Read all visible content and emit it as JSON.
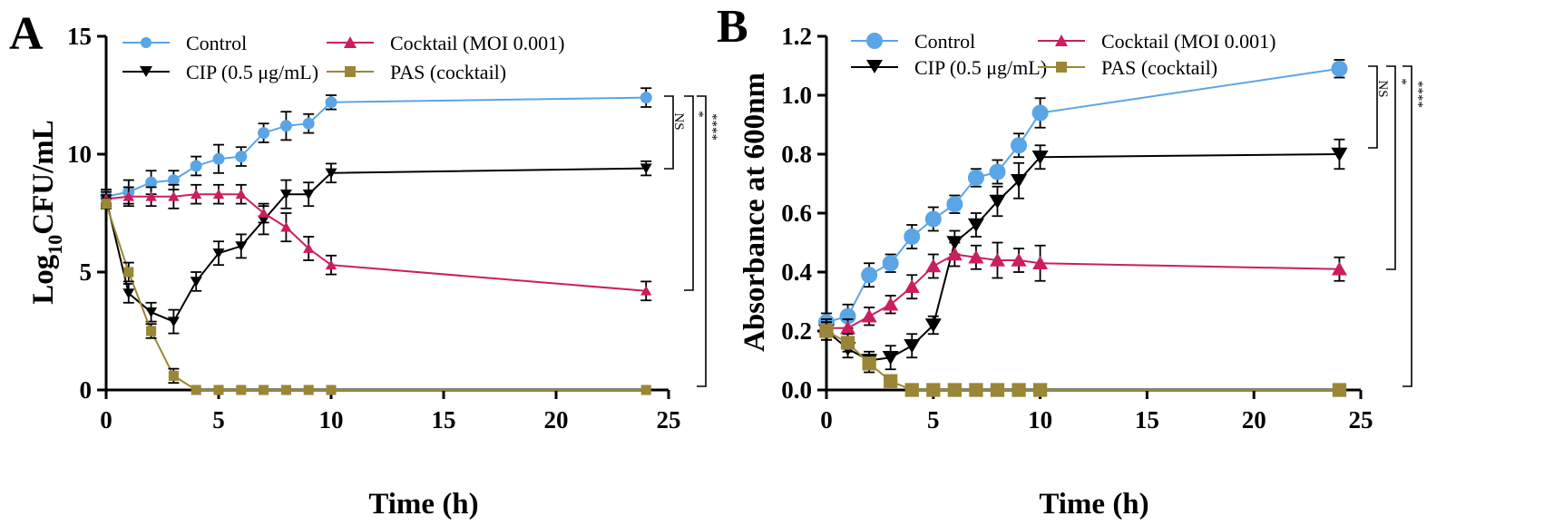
{
  "chart_data": [
    {
      "type": "line",
      "panel_label": "A",
      "xlabel": "Time (h)",
      "ylabel": {
        "prefix": "Log",
        "subscript": "10",
        "suffix": "CFU/mL"
      },
      "xlim": [
        0,
        25
      ],
      "ylim": [
        0,
        15
      ],
      "xticks": [
        0,
        5,
        10,
        15,
        20,
        25
      ],
      "yticks": [
        0,
        5,
        10,
        15
      ],
      "ytick_labels": [
        "0",
        "5",
        "10",
        "15"
      ],
      "legend_position": "top",
      "series": [
        {
          "name": "Control",
          "color": "#5aa5e6",
          "marker": "circle",
          "x": [
            0,
            1,
            2,
            3,
            4,
            5,
            6,
            7,
            8,
            9,
            10,
            24
          ],
          "y": [
            8.2,
            8.4,
            8.8,
            8.9,
            9.5,
            9.8,
            9.9,
            10.9,
            11.2,
            11.3,
            12.2,
            12.4
          ],
          "err": [
            0.3,
            0.5,
            0.5,
            0.4,
            0.4,
            0.6,
            0.4,
            0.4,
            0.6,
            0.4,
            0.3,
            0.4
          ]
        },
        {
          "name": "CIP (0.5 μg/mL)",
          "color": "#000000",
          "marker": "triangle-down",
          "x": [
            0,
            1,
            2,
            3,
            4,
            5,
            6,
            7,
            8,
            9,
            10,
            24
          ],
          "y": [
            8.1,
            4.1,
            3.3,
            2.9,
            4.6,
            5.8,
            6.1,
            7.2,
            8.3,
            8.3,
            9.2,
            9.4
          ],
          "err": [
            0.3,
            0.4,
            0.4,
            0.5,
            0.4,
            0.5,
            0.5,
            0.6,
            0.6,
            0.5,
            0.4,
            0.3
          ]
        },
        {
          "name": "Cocktail (MOI 0.001)",
          "color": "#cc1e5f",
          "marker": "triangle-up",
          "x": [
            0,
            1,
            2,
            3,
            4,
            5,
            6,
            7,
            8,
            9,
            10,
            24
          ],
          "y": [
            8.1,
            8.2,
            8.2,
            8.2,
            8.3,
            8.3,
            8.3,
            7.5,
            6.9,
            6.0,
            5.3,
            4.2
          ],
          "err": [
            0.3,
            0.4,
            0.4,
            0.5,
            0.4,
            0.4,
            0.4,
            0.4,
            0.6,
            0.5,
            0.4,
            0.4
          ]
        },
        {
          "name": "PAS (cocktail)",
          "color": "#9a8636",
          "marker": "square",
          "x": [
            0,
            1,
            2,
            3,
            4,
            5,
            6,
            7,
            8,
            9,
            10,
            24
          ],
          "y": [
            7.9,
            5.0,
            2.5,
            0.6,
            0.0,
            0.0,
            0.0,
            0.0,
            0.0,
            0.0,
            0.0,
            0.0
          ],
          "err": [
            0.2,
            0.4,
            0.3,
            0.3,
            0,
            0,
            0,
            0,
            0,
            0,
            0,
            0
          ]
        }
      ],
      "significance": [
        "NS",
        "*",
        "****"
      ]
    },
    {
      "type": "line",
      "panel_label": "B",
      "xlabel": "Time (h)",
      "ylabel": "Absorbance at 600nm",
      "xlim": [
        0,
        25
      ],
      "ylim": [
        0,
        1.2
      ],
      "xticks": [
        0,
        5,
        10,
        15,
        20,
        25
      ],
      "yticks": [
        0,
        0.2,
        0.4,
        0.6,
        0.8,
        1.0,
        1.2
      ],
      "ytick_labels": [
        "0.0",
        "0.2",
        "0.4",
        "0.6",
        "0.8",
        "1.0",
        "1.2"
      ],
      "legend_position": "top",
      "series": [
        {
          "name": "Control",
          "color": "#5aa5e6",
          "marker": "circle",
          "x": [
            0,
            1,
            2,
            3,
            4,
            5,
            6,
            7,
            8,
            9,
            10,
            24
          ],
          "y": [
            0.23,
            0.25,
            0.39,
            0.43,
            0.52,
            0.58,
            0.63,
            0.72,
            0.74,
            0.83,
            0.94,
            1.09
          ],
          "err": [
            0.03,
            0.04,
            0.04,
            0.03,
            0.04,
            0.04,
            0.03,
            0.03,
            0.04,
            0.04,
            0.05,
            0.03
          ]
        },
        {
          "name": "CIP (0.5 μg/mL)",
          "color": "#000000",
          "marker": "triangle-down",
          "x": [
            0,
            1,
            2,
            3,
            4,
            5,
            6,
            7,
            8,
            9,
            10,
            24
          ],
          "y": [
            0.2,
            0.14,
            0.1,
            0.11,
            0.15,
            0.22,
            0.5,
            0.56,
            0.64,
            0.71,
            0.79,
            0.8
          ],
          "err": [
            0.03,
            0.03,
            0.03,
            0.04,
            0.04,
            0.03,
            0.04,
            0.04,
            0.05,
            0.06,
            0.04,
            0.05
          ]
        },
        {
          "name": "Cocktail (MOI 0.001)",
          "color": "#cc1e5f",
          "marker": "triangle-up",
          "x": [
            0,
            1,
            2,
            3,
            4,
            5,
            6,
            7,
            8,
            9,
            10,
            24
          ],
          "y": [
            0.21,
            0.21,
            0.25,
            0.29,
            0.35,
            0.42,
            0.46,
            0.45,
            0.44,
            0.44,
            0.43,
            0.41
          ],
          "err": [
            0.03,
            0.03,
            0.03,
            0.03,
            0.04,
            0.04,
            0.04,
            0.04,
            0.06,
            0.04,
            0.06,
            0.04
          ]
        },
        {
          "name": "PAS (cocktail)",
          "color": "#9a8636",
          "marker": "square",
          "x": [
            0,
            1,
            2,
            3,
            4,
            5,
            6,
            7,
            8,
            9,
            10,
            24
          ],
          "y": [
            0.2,
            0.16,
            0.09,
            0.03,
            0.0,
            0.0,
            0.0,
            0.0,
            0.0,
            0.0,
            0.0,
            0.0
          ],
          "err": [
            0.03,
            0.03,
            0.03,
            0.02,
            0,
            0,
            0,
            0,
            0,
            0,
            0,
            0
          ]
        }
      ],
      "significance": [
        "NS",
        "*",
        "****"
      ]
    }
  ]
}
